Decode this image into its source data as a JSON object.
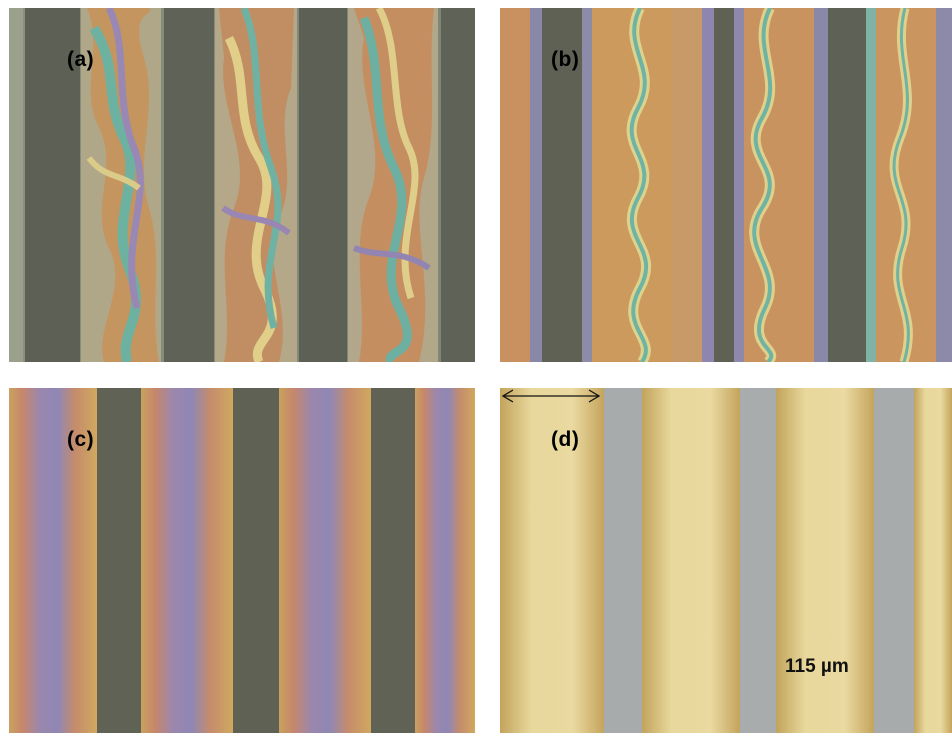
{
  "panels": [
    {
      "id": "a",
      "label": "(a)"
    },
    {
      "id": "b",
      "label": "(b)"
    },
    {
      "id": "c",
      "label": "(c)"
    },
    {
      "id": "d",
      "label": "(d)"
    }
  ],
  "scale_bar": {
    "text": "115 µm"
  },
  "colors": {
    "dark_stripe": "#5e5f55",
    "gold": "#d7b76a",
    "pale_gold": "#e6d49a",
    "grey_blue": "#a9acad",
    "orange": "#d3925c",
    "blue_violet": "#8f86b3",
    "cyan": "#6fb3a3"
  }
}
